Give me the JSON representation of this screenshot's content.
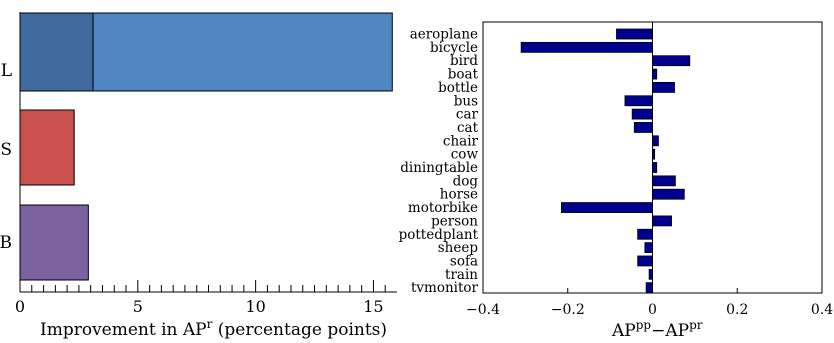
{
  "chart_data": [
    {
      "type": "bar",
      "orientation": "horizontal",
      "categories": [
        "L",
        "S",
        "B"
      ],
      "segments": [
        {
          "category": "L",
          "values": [
            3.1,
            12.7
          ],
          "colors": [
            "#3f6a9d",
            "#4f86c2"
          ]
        },
        {
          "category": "S",
          "values": [
            2.3
          ],
          "colors": [
            "#c9504e"
          ]
        },
        {
          "category": "B",
          "values": [
            2.9
          ],
          "colors": [
            "#7d62a2"
          ]
        }
      ],
      "xlabel_main": "Improvement in AP",
      "xlabel_sup": "r",
      "xlabel_tail": " (percentage points)",
      "xlim": [
        0,
        16
      ],
      "xticks": [
        0,
        5,
        10,
        15
      ],
      "xtick_labels": [
        "0",
        "5",
        "10",
        "15"
      ],
      "minor_tick_step": 0.5
    },
    {
      "type": "bar",
      "orientation": "horizontal",
      "categories": [
        "aeroplane",
        "bicycle",
        "bird",
        "boat",
        "bottle",
        "bus",
        "car",
        "cat",
        "chair",
        "cow",
        "diningtable",
        "dog",
        "horse",
        "motorbike",
        "person",
        "pottedplant",
        "sheep",
        "sofa",
        "train",
        "tvmonitor"
      ],
      "values": [
        -0.085,
        -0.31,
        0.088,
        0.01,
        0.052,
        -0.065,
        -0.048,
        -0.043,
        0.014,
        0.005,
        0.01,
        0.054,
        0.075,
        -0.215,
        0.045,
        -0.035,
        -0.018,
        -0.035,
        -0.008,
        -0.015
      ],
      "bar_color": "#00008f",
      "xlim": [
        -0.4,
        0.4
      ],
      "xticks": [
        -0.4,
        -0.2,
        0,
        0.2,
        0.4
      ],
      "xtick_labels": [
        "−0.4",
        "−0.2",
        "0",
        "0.2",
        "0.4"
      ],
      "xlabel_parts": [
        {
          "text": "AP",
          "sup": false
        },
        {
          "text": "pp",
          "sup": true
        },
        {
          "text": "−AP",
          "sup": false
        },
        {
          "text": "pr",
          "sup": true
        }
      ]
    }
  ]
}
